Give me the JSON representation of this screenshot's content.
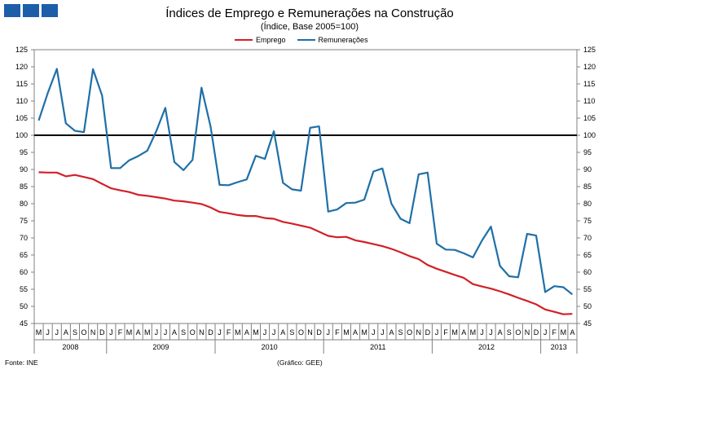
{
  "header": {
    "title": "Índices de Emprego e Remunerações na Construção",
    "subtitle": "(Índice, Base 2005=100)"
  },
  "footer": {
    "source": "Fonte: INE",
    "credit": "(Gráfico: GEE)"
  },
  "colors": {
    "logo": "#1c5ea8",
    "emprego": "#d22027",
    "remuneracoes": "#1f6fa8",
    "reference_line": "#000000"
  },
  "chart_data": {
    "type": "line",
    "title": "Índices de Emprego e Remunerações na Construção",
    "subtitle": "(Índice, Base 2005=100)",
    "ylim": [
      45,
      125
    ],
    "y_ticks": [
      45,
      50,
      55,
      60,
      65,
      70,
      75,
      80,
      85,
      90,
      95,
      100,
      105,
      110,
      115,
      120,
      125
    ],
    "dual_y_axis_same_scale": true,
    "reference_line": 100,
    "grid": false,
    "legend": "top",
    "month_labels": [
      "M",
      "J",
      "J",
      "A",
      "S",
      "O",
      "N",
      "D",
      "J",
      "F",
      "M",
      "A",
      "M",
      "J",
      "J",
      "A",
      "S",
      "O",
      "N",
      "D",
      "J",
      "F",
      "M",
      "A",
      "M",
      "J",
      "J",
      "A",
      "S",
      "O",
      "N",
      "D",
      "J",
      "F",
      "M",
      "A",
      "M",
      "J",
      "J",
      "A",
      "S",
      "O",
      "N",
      "D",
      "J",
      "F",
      "M",
      "A",
      "M",
      "J",
      "J",
      "A",
      "S",
      "O",
      "N",
      "D",
      "J",
      "F",
      "M",
      "A"
    ],
    "year_groups": [
      {
        "label": "2008",
        "months": 8
      },
      {
        "label": "2009",
        "months": 12
      },
      {
        "label": "2010",
        "months": 12
      },
      {
        "label": "2011",
        "months": 12
      },
      {
        "label": "2012",
        "months": 12
      },
      {
        "label": "2013",
        "months": 4
      }
    ],
    "series": [
      {
        "name": "Emprego",
        "color": "#d22027",
        "values": [
          89.2,
          89.1,
          89.1,
          88.0,
          88.4,
          87.8,
          87.2,
          85.8,
          84.5,
          83.9,
          83.4,
          82.6,
          82.3,
          81.9,
          81.5,
          80.9,
          80.7,
          80.3,
          79.9,
          78.9,
          77.6,
          77.2,
          76.7,
          76.4,
          76.4,
          75.8,
          75.6,
          74.7,
          74.2,
          73.6,
          73.0,
          71.8,
          70.6,
          70.2,
          70.3,
          69.3,
          68.8,
          68.2,
          67.6,
          66.8,
          65.8,
          64.7,
          63.8,
          62.1,
          61.0,
          60.1,
          59.2,
          58.3,
          56.5,
          55.8,
          55.2,
          54.4,
          53.5,
          52.5,
          51.6,
          50.6,
          49.1,
          48.4,
          47.7,
          47.8
        ]
      },
      {
        "name": "Remunerações",
        "color": "#1f6fa8",
        "values": [
          104.3,
          112.3,
          119.4,
          103.5,
          101.3,
          100.9,
          119.3,
          111.6,
          90.4,
          90.4,
          92.7,
          93.9,
          95.5,
          101.2,
          108.0,
          92.2,
          89.8,
          92.8,
          113.9,
          102.6,
          85.5,
          85.4,
          86.3,
          87.1,
          94.0,
          93.1,
          101.2,
          86.1,
          84.2,
          83.8,
          102.2,
          102.6,
          77.7,
          78.3,
          80.2,
          80.3,
          81.2,
          89.4,
          90.3,
          80.0,
          75.6,
          74.3,
          88.6,
          89.1,
          68.3,
          66.6,
          66.5,
          65.5,
          64.3,
          69.2,
          73.3,
          61.8,
          58.8,
          58.5,
          71.2,
          70.7,
          54.2,
          55.9,
          55.6,
          53.5
        ]
      }
    ]
  }
}
